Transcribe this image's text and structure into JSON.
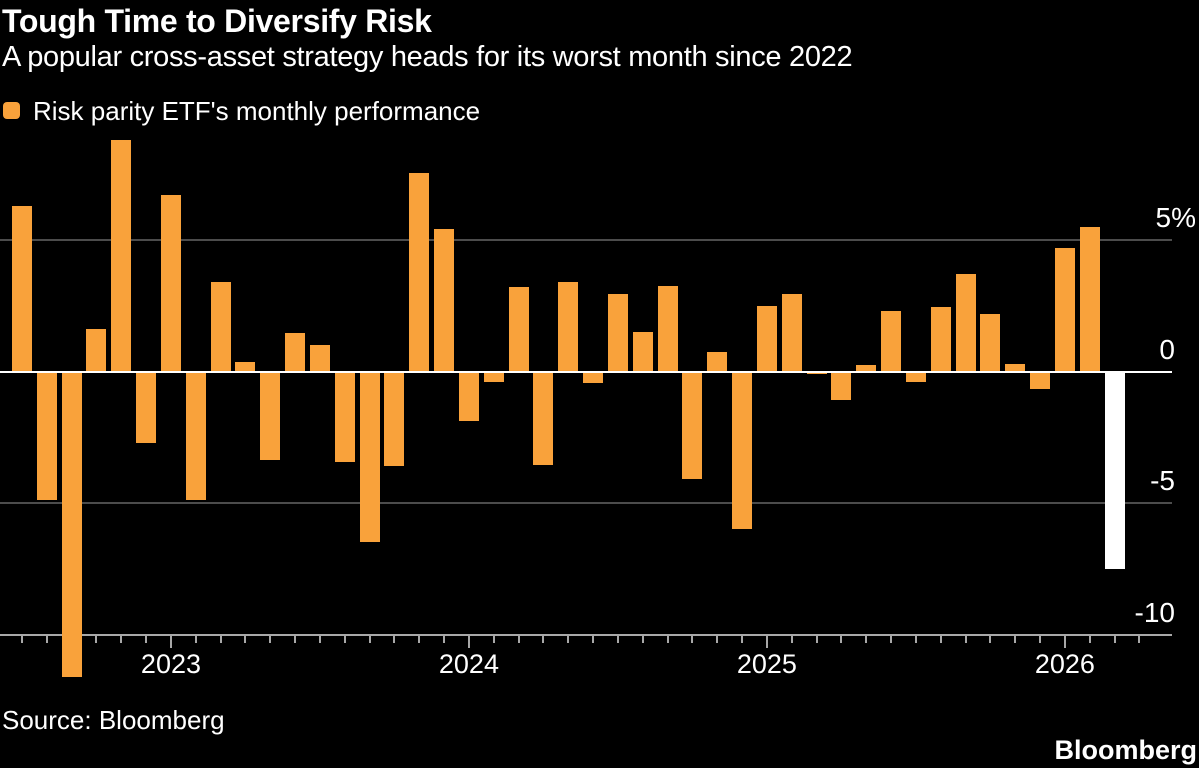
{
  "header": {
    "title": "Tough Time to Diversify Risk",
    "subtitle": "A popular cross-asset strategy heads for its worst month since 2022"
  },
  "legend": {
    "label": "Risk parity ETF's monthly performance",
    "swatch_color": "#F9A23B"
  },
  "footer": {
    "source": "Source: Bloomberg",
    "brand": "Bloomberg"
  },
  "colors": {
    "background": "#000000",
    "bar_orange": "#F9A23B",
    "highlight_white": "#FFFFFF",
    "gridline_gray": "#4c4c4c",
    "axis_gray": "#a8a8a8",
    "zero_line": "#FFFFFF"
  },
  "chart_data": {
    "type": "bar",
    "title": "Tough Time to Diversify Risk",
    "subtitle": "A popular cross-asset strategy heads for its worst month since 2022",
    "legend_position": "top-left",
    "grid": "horizontal",
    "y_axis": {
      "unit": "%",
      "ticks": [
        {
          "value": 5,
          "label": "5%"
        },
        {
          "value": 0,
          "label": "0"
        },
        {
          "value": -5,
          "label": "-5"
        },
        {
          "value": -10,
          "label": "-10"
        }
      ],
      "range_visible": [
        -10,
        9.2
      ],
      "labels_side": "right"
    },
    "x_axis": {
      "tick_interval": "monthly",
      "year_labels": [
        "2023",
        "2024",
        "2025",
        "2026"
      ]
    },
    "highlight_month": "2026-03",
    "highlight_color": "#FFFFFF",
    "series": [
      {
        "name": "Risk parity ETF's monthly performance",
        "color": "#F9A23B",
        "points": [
          {
            "month": "2022-07",
            "value": 6.3
          },
          {
            "month": "2022-08",
            "value": -4.9
          },
          {
            "month": "2022-09",
            "value": -11.6
          },
          {
            "month": "2022-10",
            "value": 1.6
          },
          {
            "month": "2022-11",
            "value": 8.8
          },
          {
            "month": "2022-12",
            "value": -2.7
          },
          {
            "month": "2023-01",
            "value": 6.7
          },
          {
            "month": "2023-02",
            "value": -4.9
          },
          {
            "month": "2023-03",
            "value": 3.4
          },
          {
            "month": "2023-04",
            "value": 0.35
          },
          {
            "month": "2023-05",
            "value": -3.35
          },
          {
            "month": "2023-06",
            "value": 1.45
          },
          {
            "month": "2023-07",
            "value": 1.0
          },
          {
            "month": "2023-08",
            "value": -3.45
          },
          {
            "month": "2023-09",
            "value": -6.5
          },
          {
            "month": "2023-10",
            "value": -3.6
          },
          {
            "month": "2023-11",
            "value": 7.55
          },
          {
            "month": "2023-12",
            "value": 5.4
          },
          {
            "month": "2024-01",
            "value": -1.9
          },
          {
            "month": "2024-02",
            "value": -0.4
          },
          {
            "month": "2024-03",
            "value": 3.2
          },
          {
            "month": "2024-04",
            "value": -3.55
          },
          {
            "month": "2024-05",
            "value": 3.4
          },
          {
            "month": "2024-06",
            "value": -0.45
          },
          {
            "month": "2024-07",
            "value": 2.95
          },
          {
            "month": "2024-08",
            "value": 1.5
          },
          {
            "month": "2024-09",
            "value": 3.25
          },
          {
            "month": "2024-10",
            "value": -4.1
          },
          {
            "month": "2024-11",
            "value": 0.75
          },
          {
            "month": "2024-12",
            "value": -6.0
          },
          {
            "month": "2025-01",
            "value": 2.5
          },
          {
            "month": "2025-02",
            "value": 2.95
          },
          {
            "month": "2025-03",
            "value": -0.1
          },
          {
            "month": "2025-04",
            "value": -1.1
          },
          {
            "month": "2025-05",
            "value": 0.25
          },
          {
            "month": "2025-06",
            "value": 2.3
          },
          {
            "month": "2025-07",
            "value": -0.4
          },
          {
            "month": "2025-08",
            "value": 2.45
          },
          {
            "month": "2025-09",
            "value": 3.7
          },
          {
            "month": "2025-10",
            "value": 2.2
          },
          {
            "month": "2025-11",
            "value": 0.3
          },
          {
            "month": "2025-12",
            "value": -0.65
          },
          {
            "month": "2026-01",
            "value": 4.7
          },
          {
            "month": "2026-02",
            "value": 5.5
          },
          {
            "month": "2026-03",
            "value": -7.5,
            "color": "#FFFFFF"
          }
        ]
      }
    ]
  }
}
